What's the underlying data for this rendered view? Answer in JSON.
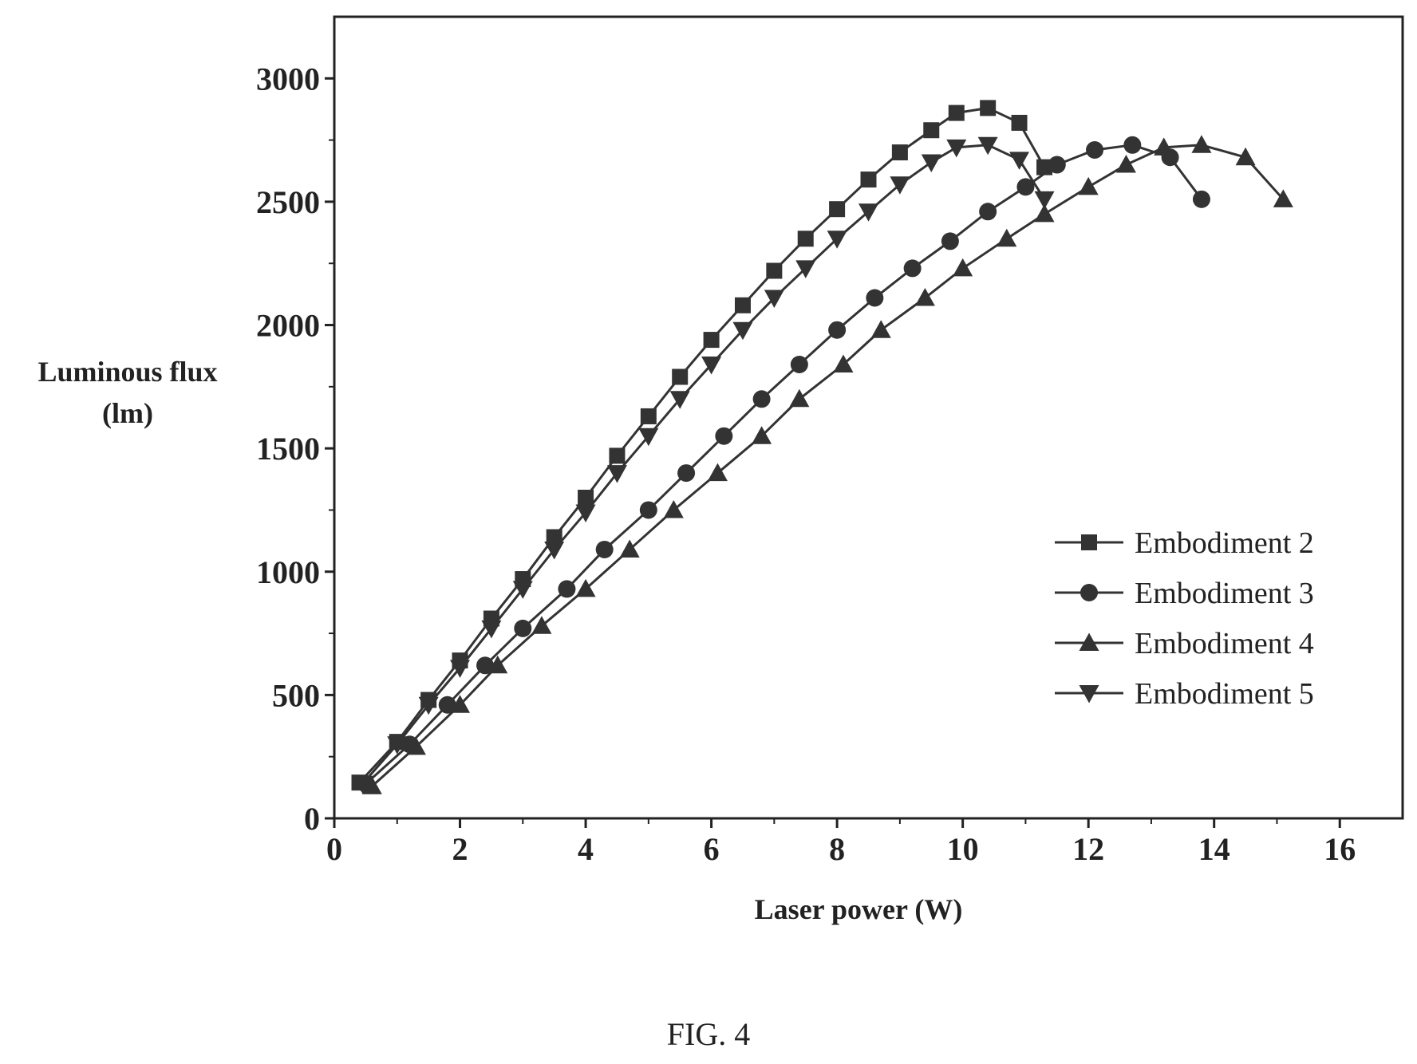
{
  "caption": "FIG. 4",
  "chart_data": {
    "type": "line",
    "title": "",
    "xlabel": "Laser power (W)",
    "ylabel_lines": [
      "Luminous flux",
      "(lm)"
    ],
    "xlim": [
      0,
      17
    ],
    "ylim": [
      0,
      3250
    ],
    "xticks": [
      0,
      2,
      4,
      6,
      8,
      10,
      12,
      14,
      16
    ],
    "yticks": [
      0,
      500,
      1000,
      1500,
      2000,
      2500,
      3000
    ],
    "grid": false,
    "legend_position": "lower-right",
    "series": [
      {
        "name": "Embodiment 2",
        "marker": "square",
        "x": [
          0.4,
          1.0,
          1.5,
          2.0,
          2.5,
          3.0,
          3.5,
          4.0,
          4.5,
          5.0,
          5.5,
          6.0,
          6.5,
          7.0,
          7.5,
          8.0,
          8.5,
          9.0,
          9.5,
          9.9,
          10.4,
          10.9,
          11.3
        ],
        "y": [
          145,
          310,
          480,
          640,
          810,
          970,
          1140,
          1300,
          1470,
          1630,
          1790,
          1940,
          2080,
          2220,
          2350,
          2470,
          2590,
          2700,
          2790,
          2860,
          2880,
          2820,
          2640
        ]
      },
      {
        "name": "Embodiment 3",
        "marker": "circle",
        "x": [
          0.5,
          1.2,
          1.8,
          2.4,
          3.0,
          3.7,
          4.3,
          5.0,
          5.6,
          6.2,
          6.8,
          7.4,
          8.0,
          8.6,
          9.2,
          9.8,
          10.4,
          11.0,
          11.5,
          12.1,
          12.7,
          13.3,
          13.8
        ],
        "y": [
          140,
          300,
          460,
          620,
          770,
          930,
          1090,
          1250,
          1400,
          1550,
          1700,
          1840,
          1980,
          2110,
          2230,
          2340,
          2460,
          2560,
          2650,
          2710,
          2730,
          2680,
          2510
        ]
      },
      {
        "name": "Embodiment 4",
        "marker": "triangle-up",
        "x": [
          0.6,
          1.3,
          2.0,
          2.6,
          3.3,
          4.0,
          4.7,
          5.4,
          6.1,
          6.8,
          7.4,
          8.1,
          8.7,
          9.4,
          10.0,
          10.7,
          11.3,
          12.0,
          12.6,
          13.2,
          13.8,
          14.5,
          15.1
        ],
        "y": [
          130,
          290,
          460,
          620,
          780,
          930,
          1090,
          1250,
          1400,
          1550,
          1700,
          1840,
          1980,
          2110,
          2230,
          2350,
          2450,
          2560,
          2650,
          2720,
          2730,
          2680,
          2510
        ]
      },
      {
        "name": "Embodiment 5",
        "marker": "triangle-down",
        "x": [
          0.45,
          1.0,
          1.5,
          2.0,
          2.5,
          3.0,
          3.5,
          4.0,
          4.5,
          5.0,
          5.5,
          6.0,
          6.5,
          7.0,
          7.5,
          8.0,
          8.5,
          9.0,
          9.5,
          9.9,
          10.4,
          10.9,
          11.3
        ],
        "y": [
          140,
          300,
          460,
          610,
          770,
          930,
          1090,
          1240,
          1400,
          1550,
          1700,
          1840,
          1980,
          2110,
          2230,
          2350,
          2460,
          2570,
          2660,
          2720,
          2730,
          2670,
          2510
        ]
      }
    ]
  }
}
